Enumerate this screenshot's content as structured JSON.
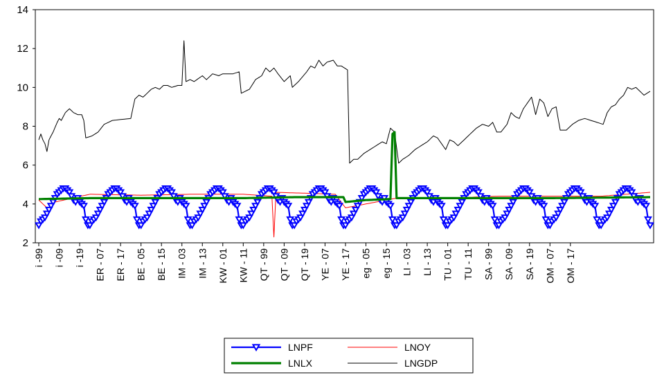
{
  "chart_data": {
    "type": "line",
    "ylim": [
      2,
      14
    ],
    "yticks": [
      2,
      4,
      6,
      8,
      10,
      12,
      14
    ],
    "xlabel": "",
    "ylabel": "",
    "grid": false,
    "legend_position": "bottom-center",
    "n_points": 300,
    "tick_labels": [
      "i -99",
      "i -09",
      "i -19",
      "ER - 07",
      "ER - 17",
      "BE - 05",
      "BE - 15",
      "IM - 03",
      "IM - 13",
      "KW - 01",
      "KW - 11",
      "QT - 99",
      "QT - 09",
      "QT - 19",
      "YE - 07",
      "YE - 17",
      "eg - 05",
      "eg - 15",
      "LI - 03",
      "LI - 13",
      "TU - 01",
      "TU - 11",
      "SA - 99",
      "SA - 09",
      "SA - 19",
      "OM - 07",
      "OM - 17"
    ],
    "tick_index_step": 10,
    "groups": [
      "i",
      "ER",
      "BE",
      "IM",
      "KW",
      "QT",
      "YE",
      "eg",
      "LI",
      "TU",
      "SA",
      "OM"
    ],
    "series": [
      {
        "name": "LNPF",
        "color": "#0000ff",
        "marker": "triangle-down",
        "description": "seasonal pattern repeating every 25 observations",
        "cycle": [
          2.9,
          3.1,
          3.2,
          3.3,
          3.5,
          3.7,
          3.9,
          4.1,
          4.3,
          4.5,
          4.6,
          4.7,
          4.8,
          4.8,
          4.7,
          4.6,
          4.4,
          4.2,
          4.1,
          4.3,
          4.1,
          4.0,
          3.9,
          3.2,
          2.9
        ]
      },
      {
        "name": "LNOY",
        "color": "#ff0000",
        "description": "approximately 4.1-4.6 with a spike down at observation 115",
        "keypoints": [
          [
            0,
            4.2
          ],
          [
            5,
            3.7
          ],
          [
            8,
            4.1
          ],
          [
            25,
            4.5
          ],
          [
            50,
            4.45
          ],
          [
            75,
            4.5
          ],
          [
            100,
            4.5
          ],
          [
            114,
            4.4
          ],
          [
            115,
            2.3
          ],
          [
            116,
            4.6
          ],
          [
            145,
            4.5
          ],
          [
            150,
            3.8
          ],
          [
            175,
            4.3
          ],
          [
            200,
            4.3
          ],
          [
            225,
            4.4
          ],
          [
            250,
            4.4
          ],
          [
            275,
            4.4
          ],
          [
            299,
            4.6
          ]
        ]
      },
      {
        "name": "LNLX",
        "color": "#008000",
        "description": "flat near 4.3 with spike at observation 174",
        "keypoints": [
          [
            0,
            4.25
          ],
          [
            25,
            4.3
          ],
          [
            50,
            4.3
          ],
          [
            100,
            4.3
          ],
          [
            125,
            4.35
          ],
          [
            149,
            4.35
          ],
          [
            150,
            4.1
          ],
          [
            160,
            4.2
          ],
          [
            172,
            4.25
          ],
          [
            173,
            7.6
          ],
          [
            174,
            7.7
          ],
          [
            175,
            4.3
          ],
          [
            200,
            4.3
          ],
          [
            250,
            4.3
          ],
          [
            299,
            4.35
          ]
        ]
      },
      {
        "name": "LNGDP",
        "color": "#000000",
        "keypoints": [
          [
            0,
            7.3
          ],
          [
            1,
            7.6
          ],
          [
            2,
            7.3
          ],
          [
            3,
            7.1
          ],
          [
            4,
            6.7
          ],
          [
            5,
            7.3
          ],
          [
            7,
            7.7
          ],
          [
            9,
            8.2
          ],
          [
            10,
            8.4
          ],
          [
            11,
            8.3
          ],
          [
            13,
            8.7
          ],
          [
            15,
            8.9
          ],
          [
            17,
            8.7
          ],
          [
            19,
            8.6
          ],
          [
            21,
            8.6
          ],
          [
            22,
            8.3
          ],
          [
            23,
            7.4
          ],
          [
            26,
            7.5
          ],
          [
            29,
            7.7
          ],
          [
            32,
            8.1
          ],
          [
            36,
            8.3
          ],
          [
            45,
            8.4
          ],
          [
            47,
            9.4
          ],
          [
            49,
            9.6
          ],
          [
            51,
            9.5
          ],
          [
            55,
            9.9
          ],
          [
            57,
            10.0
          ],
          [
            59,
            9.9
          ],
          [
            61,
            10.1
          ],
          [
            63,
            10.1
          ],
          [
            65,
            10.0
          ],
          [
            68,
            10.1
          ],
          [
            70,
            10.1
          ],
          [
            71,
            12.4
          ],
          [
            72,
            10.3
          ],
          [
            74,
            10.4
          ],
          [
            76,
            10.3
          ],
          [
            80,
            10.6
          ],
          [
            82,
            10.4
          ],
          [
            85,
            10.7
          ],
          [
            88,
            10.6
          ],
          [
            90,
            10.7
          ],
          [
            95,
            10.7
          ],
          [
            98,
            10.8
          ],
          [
            99,
            9.7
          ],
          [
            101,
            9.8
          ],
          [
            103,
            9.9
          ],
          [
            106,
            10.4
          ],
          [
            109,
            10.6
          ],
          [
            111,
            11.0
          ],
          [
            113,
            10.8
          ],
          [
            115,
            11.0
          ],
          [
            117,
            10.7
          ],
          [
            120,
            10.3
          ],
          [
            123,
            10.6
          ],
          [
            124,
            10.0
          ],
          [
            127,
            10.3
          ],
          [
            131,
            10.8
          ],
          [
            133,
            11.1
          ],
          [
            135,
            11.0
          ],
          [
            137,
            11.4
          ],
          [
            139,
            11.1
          ],
          [
            141,
            11.3
          ],
          [
            144,
            11.4
          ],
          [
            146,
            11.1
          ],
          [
            148,
            11.1
          ],
          [
            151,
            10.9
          ],
          [
            152,
            6.1
          ],
          [
            154,
            6.3
          ],
          [
            156,
            6.3
          ],
          [
            159,
            6.6
          ],
          [
            162,
            6.8
          ],
          [
            165,
            7.0
          ],
          [
            168,
            7.2
          ],
          [
            170,
            7.1
          ],
          [
            172,
            7.9
          ],
          [
            174,
            7.7
          ],
          [
            176,
            6.1
          ],
          [
            178,
            6.3
          ],
          [
            181,
            6.5
          ],
          [
            184,
            6.8
          ],
          [
            187,
            7.0
          ],
          [
            190,
            7.2
          ],
          [
            193,
            7.5
          ],
          [
            195,
            7.4
          ],
          [
            197,
            7.1
          ],
          [
            199,
            6.8
          ],
          [
            201,
            7.3
          ],
          [
            203,
            7.2
          ],
          [
            205,
            7.0
          ],
          [
            208,
            7.3
          ],
          [
            211,
            7.6
          ],
          [
            214,
            7.9
          ],
          [
            217,
            8.1
          ],
          [
            220,
            8.0
          ],
          [
            222,
            8.2
          ],
          [
            224,
            7.7
          ],
          [
            226,
            7.7
          ],
          [
            229,
            8.1
          ],
          [
            231,
            8.7
          ],
          [
            233,
            8.5
          ],
          [
            235,
            8.4
          ],
          [
            237,
            8.9
          ],
          [
            239,
            9.2
          ],
          [
            241,
            9.5
          ],
          [
            243,
            8.6
          ],
          [
            245,
            9.4
          ],
          [
            247,
            9.2
          ],
          [
            249,
            8.5
          ],
          [
            251,
            8.9
          ],
          [
            253,
            9.0
          ],
          [
            255,
            7.8
          ],
          [
            258,
            7.8
          ],
          [
            261,
            8.1
          ],
          [
            264,
            8.3
          ],
          [
            267,
            8.4
          ],
          [
            270,
            8.3
          ],
          [
            273,
            8.2
          ],
          [
            276,
            8.1
          ],
          [
            278,
            8.7
          ],
          [
            280,
            9.0
          ],
          [
            282,
            9.1
          ],
          [
            284,
            9.4
          ],
          [
            286,
            9.6
          ],
          [
            288,
            10.0
          ],
          [
            290,
            9.9
          ],
          [
            292,
            10.0
          ],
          [
            294,
            9.8
          ],
          [
            296,
            9.6
          ],
          [
            299,
            9.8
          ]
        ]
      }
    ]
  }
}
